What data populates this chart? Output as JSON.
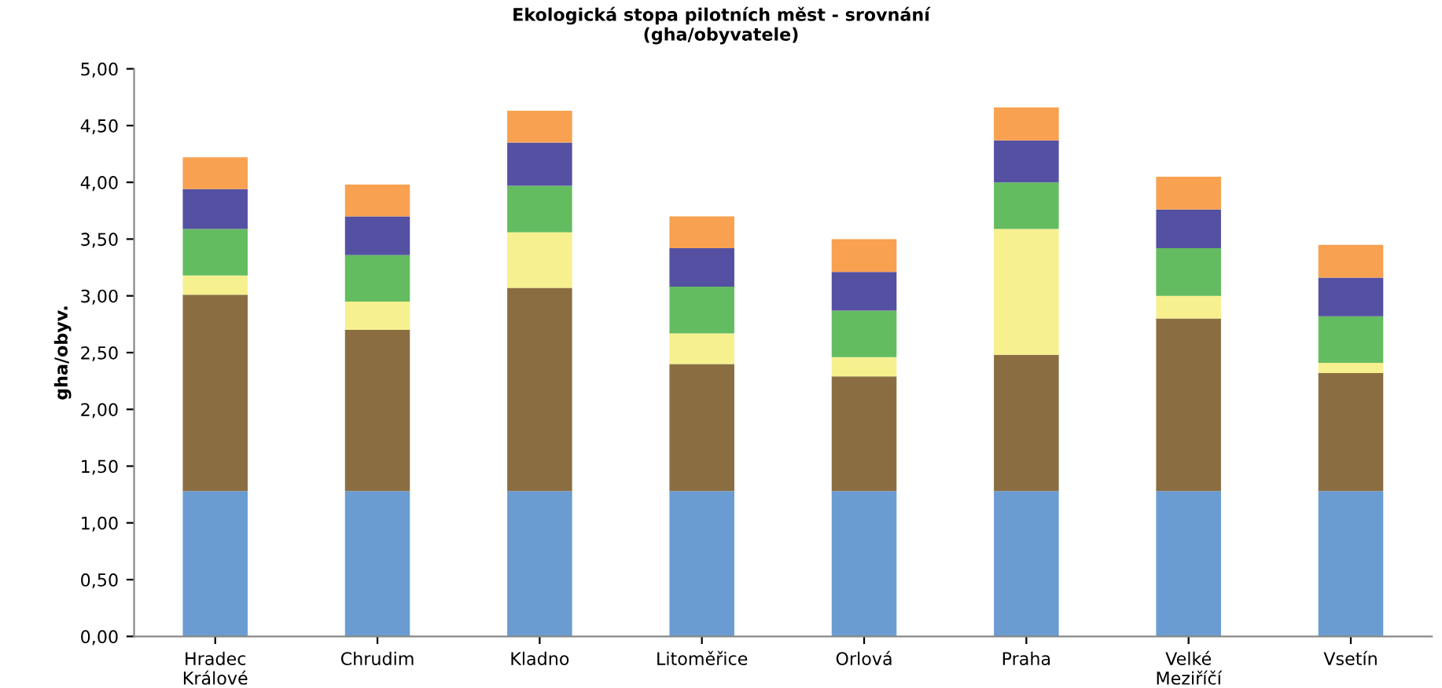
{
  "chart_data": {
    "type": "bar",
    "stacked": true,
    "title": "Ekologická stopa pilotních měst - srovnání\n(gha/obyvatele)",
    "ylabel": "gha/obyv.",
    "categories": [
      "Hradec\nKrálové",
      "Chrudim",
      "Kladno",
      "Litoměřice",
      "Orlová",
      "Praha",
      "Velké\nMeziříčí",
      "Vsetín"
    ],
    "series": [
      {
        "color": "#6a9cd2",
        "values": [
          1.28,
          1.28,
          1.28,
          1.28,
          1.28,
          1.28,
          1.28,
          1.28
        ]
      },
      {
        "color": "#8a6e42",
        "values": [
          1.73,
          1.42,
          1.79,
          1.12,
          1.01,
          1.2,
          1.52,
          1.04
        ]
      },
      {
        "color": "#f7f08f",
        "values": [
          0.17,
          0.25,
          0.49,
          0.27,
          0.17,
          1.11,
          0.2,
          0.09
        ]
      },
      {
        "color": "#64bc60",
        "values": [
          0.41,
          0.41,
          0.41,
          0.41,
          0.41,
          0.41,
          0.42,
          0.41
        ]
      },
      {
        "color": "#5450a2",
        "values": [
          0.35,
          0.34,
          0.38,
          0.34,
          0.34,
          0.37,
          0.34,
          0.34
        ]
      },
      {
        "color": "#f8a150",
        "values": [
          0.28,
          0.28,
          0.28,
          0.28,
          0.29,
          0.29,
          0.29,
          0.29
        ]
      }
    ],
    "ylim": [
      0,
      5
    ],
    "yticks": [
      {
        "value": 0,
        "label": "0,00"
      },
      {
        "value": 0.5,
        "label": "0,50"
      },
      {
        "value": 1,
        "label": "1,00"
      },
      {
        "value": 1.5,
        "label": "1,50"
      },
      {
        "value": 2,
        "label": "2,00"
      },
      {
        "value": 2.5,
        "label": "2,50"
      },
      {
        "value": 3,
        "label": "3,00"
      },
      {
        "value": 3.5,
        "label": "3,50"
      },
      {
        "value": 4,
        "label": "4,00"
      },
      {
        "value": 4.5,
        "label": "4,50"
      },
      {
        "value": 5,
        "label": "5,00"
      }
    ],
    "grid": false,
    "legend": false
  }
}
